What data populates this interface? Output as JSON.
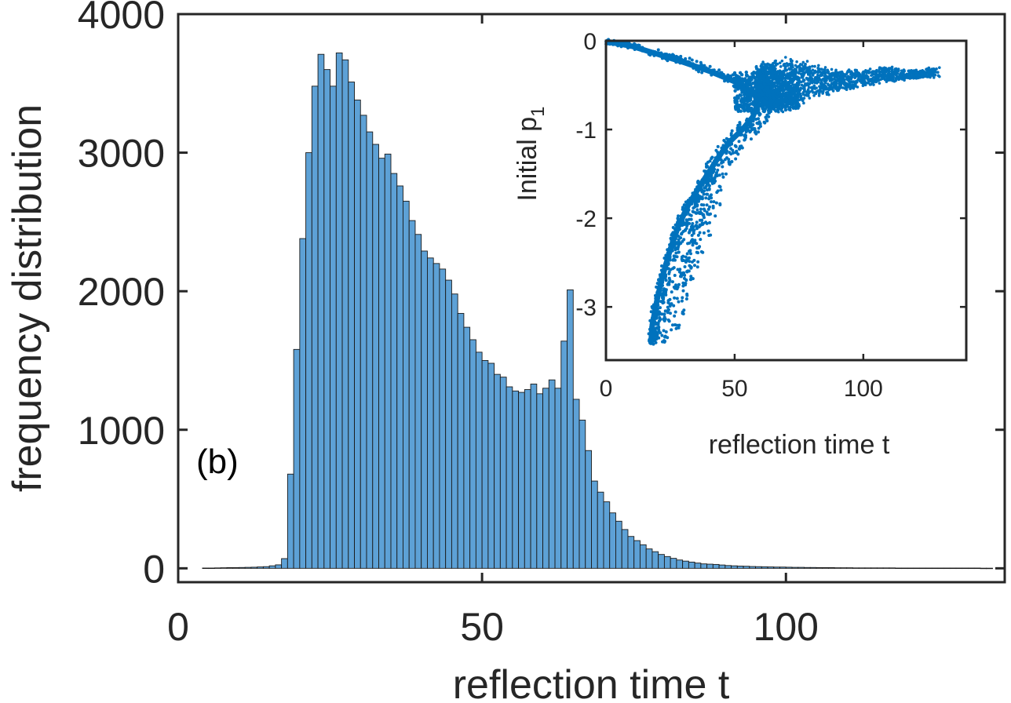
{
  "panel_label": "(b)",
  "colors": {
    "bar_fill": "#5DA1D6",
    "bar_edge": "#1a1a1a",
    "scatter": "#0072BD",
    "axis": "#262626"
  },
  "chart_data": [
    {
      "type": "bar",
      "title": "",
      "xlabel": "reflection time t",
      "ylabel": "frequency distribution",
      "xlim": [
        0,
        136
      ],
      "ylim": [
        -100,
        4000
      ],
      "x_ticks": [
        0,
        50,
        100
      ],
      "y_ticks": [
        0,
        1000,
        2000,
        3000,
        4000
      ],
      "x_tick_labels": [
        "0",
        "50",
        "100"
      ],
      "y_tick_labels": [
        "0",
        "1000",
        "2000",
        "3000",
        "4000"
      ],
      "bin_width": 1,
      "bin_start": 4,
      "values": [
        2,
        2,
        3,
        4,
        5,
        5,
        6,
        7,
        8,
        10,
        12,
        18,
        25,
        70,
        680,
        1580,
        2380,
        3000,
        3480,
        3710,
        3600,
        3480,
        3720,
        3670,
        3510,
        3380,
        3270,
        3150,
        3060,
        2960,
        2990,
        2850,
        2760,
        2650,
        2510,
        2410,
        2290,
        2240,
        2200,
        2160,
        2080,
        1980,
        1840,
        1740,
        1650,
        1560,
        1500,
        1480,
        1400,
        1380,
        1310,
        1280,
        1270,
        1290,
        1330,
        1260,
        1300,
        1360,
        1300,
        1640,
        2010,
        1220,
        1070,
        850,
        630,
        550,
        480,
        400,
        340,
        280,
        230,
        200,
        170,
        140,
        120,
        100,
        85,
        72,
        60,
        52,
        45,
        38,
        32,
        30,
        28,
        24,
        20,
        18,
        16,
        15,
        13,
        12,
        11,
        10,
        9,
        9,
        8,
        7,
        7,
        6,
        6,
        5,
        5,
        5,
        4,
        4,
        4,
        3,
        3,
        3,
        3,
        3,
        3,
        3,
        2,
        2,
        2,
        2,
        2,
        2,
        2,
        2,
        2,
        2,
        2,
        2,
        2,
        2,
        1,
        1
      ]
    },
    {
      "type": "scatter",
      "title": "",
      "xlabel": "reflection time t",
      "ylabel": "Initial p",
      "ylabel_subscript": "1",
      "xlim": [
        0,
        140
      ],
      "ylim": [
        -3.6,
        0
      ],
      "x_ticks": [
        0,
        50,
        100
      ],
      "y_ticks": [
        0,
        -1,
        -2,
        -3
      ],
      "x_tick_labels": [
        "0",
        "50",
        "100"
      ],
      "y_tick_labels": [
        "0",
        "-1",
        "-2",
        "-3"
      ],
      "series": [
        {
          "name": "reflection time vs initial p1",
          "description_points": [
            [
              0.5,
              -0.01
            ],
            [
              10,
              -0.06
            ],
            [
              20,
              -0.15
            ],
            [
              30,
              -0.24
            ],
            [
              40,
              -0.34
            ],
            [
              50,
              -0.46
            ],
            [
              55,
              -0.54
            ],
            [
              58,
              -0.62
            ],
            [
              59,
              -0.72
            ],
            [
              57,
              -0.86
            ],
            [
              53,
              -1.0
            ],
            [
              48,
              -1.14
            ],
            [
              44,
              -1.3
            ],
            [
              40,
              -1.48
            ],
            [
              36,
              -1.66
            ],
            [
              32,
              -1.85
            ],
            [
              28,
              -2.1
            ],
            [
              25,
              -2.35
            ],
            [
              22,
              -2.65
            ],
            [
              20,
              -2.9
            ],
            [
              18,
              -3.2
            ],
            [
              17.5,
              -3.4
            ]
          ],
          "scatter_upper_tail": [
            [
              60,
              -0.3
            ],
            [
              70,
              -0.25
            ],
            [
              80,
              -0.3
            ],
            [
              90,
              -0.35
            ],
            [
              100,
              -0.35
            ],
            [
              110,
              -0.3
            ],
            [
              120,
              -0.35
            ],
            [
              128,
              -0.3
            ]
          ],
          "scatter_lower_tail": [
            [
              60,
              -0.7
            ],
            [
              70,
              -0.75
            ],
            [
              80,
              -0.6
            ],
            [
              90,
              -0.55
            ],
            [
              100,
              -0.5
            ],
            [
              110,
              -0.45
            ],
            [
              120,
              -0.42
            ],
            [
              128,
              -0.4
            ]
          ]
        }
      ]
    }
  ]
}
